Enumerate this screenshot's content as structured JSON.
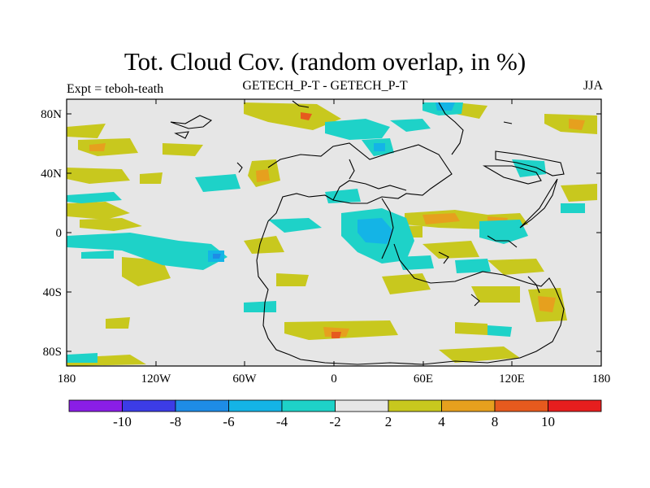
{
  "header": {
    "title": "Tot. Cloud Cov. (random overlap, in %)",
    "left": "Expt = teboh-teath",
    "center": "GETECH_P-T - GETECH_P-T",
    "right": "JJA"
  },
  "axes": {
    "y_ticks": [
      "80N",
      "40N",
      "0",
      "40S",
      "80S"
    ],
    "x_ticks": [
      "180",
      "120W",
      "60W",
      "0",
      "60E",
      "120E",
      "180"
    ]
  },
  "colorbar": {
    "labels": [
      "-10",
      "-8",
      "-6",
      "-4",
      "-2",
      "2",
      "4",
      "8",
      "10"
    ],
    "colors": [
      "#8a1ee6",
      "#3c3ce6",
      "#1e8ce6",
      "#14b4e6",
      "#1ed2c8",
      "#e6e6e6",
      "#c8c81e",
      "#e6a01e",
      "#e65a1e",
      "#e61e1e"
    ]
  },
  "colors": {
    "background": "#e6e6e6",
    "coast": "#000000"
  }
}
